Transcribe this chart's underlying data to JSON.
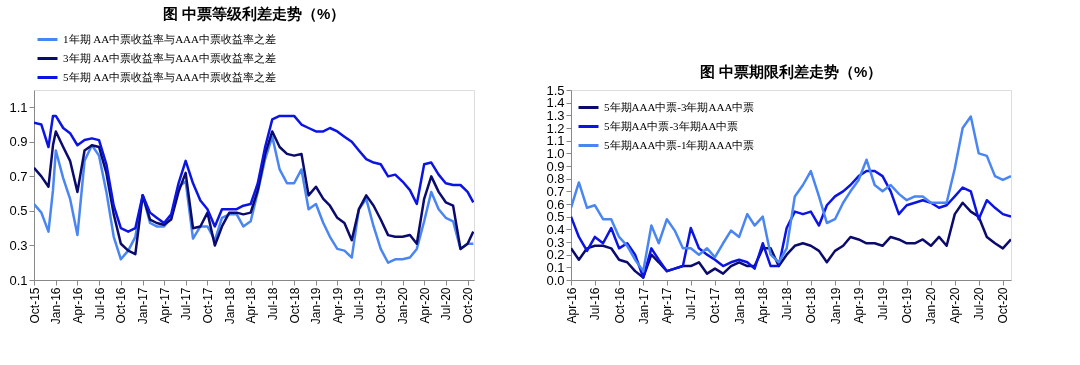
{
  "chart_data": [
    {
      "type": "line",
      "title": "图 中票等级利差走势（%）",
      "legend": "top",
      "line_style": "solid",
      "marker": "none",
      "grid": false,
      "xlim": [
        "2015-10-01",
        "2020-10-28"
      ],
      "ylim": [
        0.1,
        1.2
      ],
      "yticks": [
        0.1,
        0.3,
        0.5,
        0.7,
        0.9,
        1.1
      ],
      "xticks": [
        {
          "value": "2015-10-01",
          "label": "Oct-15"
        },
        {
          "value": "2016-01-01",
          "label": "Jan-16"
        },
        {
          "value": "2016-04-01",
          "label": "Apr-16"
        },
        {
          "value": "2016-07-01",
          "label": "Jul-16"
        },
        {
          "value": "2016-10-01",
          "label": "Oct-16"
        },
        {
          "value": "2017-01-01",
          "label": "Jan-17"
        },
        {
          "value": "2017-04-01",
          "label": "Apr-17"
        },
        {
          "value": "2017-07-01",
          "label": "Jul-17"
        },
        {
          "value": "2017-10-01",
          "label": "Oct-17"
        },
        {
          "value": "2018-01-01",
          "label": "Jan-18"
        },
        {
          "value": "2018-04-01",
          "label": "Apr-18"
        },
        {
          "value": "2018-07-01",
          "label": "Jul-18"
        },
        {
          "value": "2018-10-01",
          "label": "Oct-18"
        },
        {
          "value": "2019-01-01",
          "label": "Jan-19"
        },
        {
          "value": "2019-04-01",
          "label": "Apr-19"
        },
        {
          "value": "2019-07-01",
          "label": "Jul-19"
        },
        {
          "value": "2019-10-01",
          "label": "Oct-19"
        },
        {
          "value": "2020-01-01",
          "label": "Jan-20"
        },
        {
          "value": "2020-04-01",
          "label": "Apr-20"
        },
        {
          "value": "2020-07-01",
          "label": "Jul-20"
        },
        {
          "value": "2020-10-01",
          "label": "Oct-20"
        }
      ],
      "x": [
        "2015-10-01",
        "2015-11-01",
        "2015-12-01",
        "2015-12-20",
        "2016-01-01",
        "2016-02-01",
        "2016-03-01",
        "2016-04-01",
        "2016-05-01",
        "2016-06-01",
        "2016-07-01",
        "2016-08-01",
        "2016-09-01",
        "2016-10-01",
        "2016-11-01",
        "2016-12-01",
        "2017-01-01",
        "2017-02-01",
        "2017-03-01",
        "2017-04-01",
        "2017-05-01",
        "2017-06-01",
        "2017-07-01",
        "2017-08-01",
        "2017-09-01",
        "2017-10-01",
        "2017-11-01",
        "2017-12-01",
        "2018-01-01",
        "2018-02-01",
        "2018-03-01",
        "2018-04-01",
        "2018-05-01",
        "2018-06-01",
        "2018-07-01",
        "2018-08-01",
        "2018-09-01",
        "2018-10-01",
        "2018-11-01",
        "2018-12-01",
        "2019-01-01",
        "2019-02-01",
        "2019-03-01",
        "2019-04-01",
        "2019-05-01",
        "2019-06-01",
        "2019-07-01",
        "2019-08-01",
        "2019-09-01",
        "2019-10-01",
        "2019-11-01",
        "2019-12-01",
        "2020-01-01",
        "2020-02-01",
        "2020-03-01",
        "2020-04-01",
        "2020-05-01",
        "2020-06-01",
        "2020-07-01",
        "2020-08-01",
        "2020-09-01",
        "2020-10-01",
        "2020-10-25"
      ],
      "series": [
        {
          "name": "1年期 AA中票收益率与AAA中票收益率之差",
          "color": "#4a86f2",
          "values": [
            0.54,
            0.49,
            0.38,
            0.62,
            0.85,
            0.69,
            0.57,
            0.36,
            0.79,
            0.88,
            0.82,
            0.61,
            0.35,
            0.22,
            0.27,
            0.35,
            0.59,
            0.43,
            0.41,
            0.41,
            0.46,
            0.64,
            0.67,
            0.34,
            0.41,
            0.41,
            0.33,
            0.46,
            0.48,
            0.48,
            0.41,
            0.44,
            0.61,
            0.8,
            0.93,
            0.74,
            0.66,
            0.66,
            0.74,
            0.51,
            0.54,
            0.43,
            0.35,
            0.28,
            0.27,
            0.23,
            0.51,
            0.57,
            0.41,
            0.28,
            0.2,
            0.22,
            0.22,
            0.23,
            0.28,
            0.44,
            0.61,
            0.51,
            0.46,
            0.44,
            0.28,
            0.31,
            0.31
          ]
        },
        {
          "name": "3年期 AA中票收益率与AAA中票收益率之差",
          "color": "#0b0b6e",
          "values": [
            0.75,
            0.7,
            0.64,
            0.88,
            0.96,
            0.87,
            0.79,
            0.61,
            0.85,
            0.88,
            0.87,
            0.72,
            0.48,
            0.31,
            0.27,
            0.25,
            0.59,
            0.45,
            0.43,
            0.42,
            0.45,
            0.61,
            0.72,
            0.4,
            0.41,
            0.49,
            0.3,
            0.41,
            0.49,
            0.49,
            0.48,
            0.49,
            0.62,
            0.83,
            0.96,
            0.87,
            0.83,
            0.82,
            0.83,
            0.59,
            0.64,
            0.57,
            0.53,
            0.46,
            0.43,
            0.33,
            0.51,
            0.59,
            0.53,
            0.45,
            0.36,
            0.35,
            0.35,
            0.36,
            0.31,
            0.57,
            0.7,
            0.61,
            0.55,
            0.53,
            0.28,
            0.31,
            0.38
          ]
        },
        {
          "name": "5年期 AA中票收益率与AAA中票收益率之差",
          "color": "#0c14e4",
          "values": [
            1.01,
            1.0,
            0.87,
            1.05,
            1.05,
            0.98,
            0.95,
            0.88,
            0.91,
            0.92,
            0.91,
            0.77,
            0.53,
            0.4,
            0.38,
            0.4,
            0.59,
            0.49,
            0.46,
            0.43,
            0.48,
            0.66,
            0.79,
            0.66,
            0.56,
            0.51,
            0.41,
            0.51,
            0.51,
            0.51,
            0.53,
            0.54,
            0.66,
            0.87,
            1.03,
            1.05,
            1.05,
            1.05,
            1.0,
            0.98,
            0.96,
            0.96,
            0.98,
            0.96,
            0.93,
            0.9,
            0.85,
            0.8,
            0.78,
            0.77,
            0.7,
            0.71,
            0.67,
            0.62,
            0.54,
            0.77,
            0.78,
            0.71,
            0.66,
            0.65,
            0.65,
            0.61,
            0.55
          ]
        }
      ]
    },
    {
      "type": "line",
      "title": "图 中票期限利差走势（%）",
      "legend": "top left",
      "line_style": "solid",
      "marker": "none",
      "grid": false,
      "xlim": [
        "2016-04-01",
        "2020-11-01"
      ],
      "ylim": [
        0,
        1.5
      ],
      "yticks": [
        {
          "value": 0,
          "label": "0.0"
        },
        0.1,
        0.2,
        0.3,
        0.4,
        0.5,
        0.6,
        0.7,
        0.8,
        0.9,
        {
          "value": 1,
          "label": "1.0"
        },
        1.1,
        1.2,
        1.3,
        1.4,
        1.5
      ],
      "xticks": [
        {
          "value": "2016-04-01",
          "label": "Apr-16"
        },
        {
          "value": "2016-07-01",
          "label": "Jul-16"
        },
        {
          "value": "2016-10-01",
          "label": "Oct-16"
        },
        {
          "value": "2017-01-01",
          "label": "Jan-17"
        },
        {
          "value": "2017-04-01",
          "label": "Apr-17"
        },
        {
          "value": "2017-07-01",
          "label": "Jul-17"
        },
        {
          "value": "2017-10-01",
          "label": "Oct-17"
        },
        {
          "value": "2018-01-01",
          "label": "Jan-18"
        },
        {
          "value": "2018-04-01",
          "label": "Apr-18"
        },
        {
          "value": "2018-07-01",
          "label": "Jul-18"
        },
        {
          "value": "2018-10-01",
          "label": "Oct-18"
        },
        {
          "value": "2019-01-01",
          "label": "Jan-19"
        },
        {
          "value": "2019-04-01",
          "label": "Apr-19"
        },
        {
          "value": "2019-07-01",
          "label": "Jul-19"
        },
        {
          "value": "2019-10-01",
          "label": "Oct-19"
        },
        {
          "value": "2020-01-01",
          "label": "Jan-20"
        },
        {
          "value": "2020-04-01",
          "label": "Apr-20"
        },
        {
          "value": "2020-07-01",
          "label": "Jul-20"
        },
        {
          "value": "2020-10-01",
          "label": "Oct-20"
        }
      ],
      "x": [
        "2016-04-01",
        "2016-05-01",
        "2016-06-01",
        "2016-07-01",
        "2016-08-01",
        "2016-09-01",
        "2016-10-01",
        "2016-11-01",
        "2016-12-01",
        "2017-01-01",
        "2017-02-01",
        "2017-03-01",
        "2017-04-01",
        "2017-05-01",
        "2017-06-01",
        "2017-07-01",
        "2017-08-01",
        "2017-09-01",
        "2017-10-01",
        "2017-11-01",
        "2017-12-01",
        "2018-01-01",
        "2018-02-01",
        "2018-03-01",
        "2018-04-01",
        "2018-05-01",
        "2018-06-01",
        "2018-07-01",
        "2018-08-01",
        "2018-09-01",
        "2018-10-01",
        "2018-11-01",
        "2018-12-01",
        "2019-01-01",
        "2019-02-01",
        "2019-03-01",
        "2019-04-01",
        "2019-05-01",
        "2019-06-01",
        "2019-07-01",
        "2019-08-01",
        "2019-09-01",
        "2019-10-01",
        "2019-11-01",
        "2019-12-01",
        "2020-01-01",
        "2020-02-01",
        "2020-03-01",
        "2020-04-01",
        "2020-05-01",
        "2020-06-01",
        "2020-07-01",
        "2020-08-01",
        "2020-09-01",
        "2020-10-01",
        "2020-11-01"
      ],
      "series": [
        {
          "name": "5年期AAA中票-3年期AAA中票",
          "color": "#0b0b6e",
          "values": [
            0.25,
            0.16,
            0.25,
            0.27,
            0.27,
            0.25,
            0.16,
            0.14,
            0.07,
            0.02,
            0.2,
            0.14,
            0.07,
            0.09,
            0.11,
            0.11,
            0.14,
            0.05,
            0.09,
            0.05,
            0.11,
            0.14,
            0.11,
            0.11,
            0.25,
            0.25,
            0.11,
            0.2,
            0.27,
            0.29,
            0.27,
            0.23,
            0.14,
            0.23,
            0.27,
            0.34,
            0.32,
            0.29,
            0.29,
            0.27,
            0.34,
            0.32,
            0.29,
            0.29,
            0.32,
            0.27,
            0.34,
            0.27,
            0.52,
            0.61,
            0.54,
            0.5,
            0.34,
            0.29,
            0.25,
            0.32
          ]
        },
        {
          "name": "5年期AA中票-3年期AA中票",
          "color": "#0c14e4",
          "values": [
            0.5,
            0.34,
            0.23,
            0.34,
            0.29,
            0.41,
            0.25,
            0.29,
            0.2,
            0.02,
            0.25,
            0.16,
            0.07,
            0.09,
            0.11,
            0.41,
            0.25,
            0.2,
            0.16,
            0.11,
            0.14,
            0.16,
            0.14,
            0.09,
            0.29,
            0.11,
            0.11,
            0.41,
            0.54,
            0.52,
            0.54,
            0.43,
            0.59,
            0.66,
            0.7,
            0.75,
            0.82,
            0.86,
            0.86,
            0.82,
            0.7,
            0.52,
            0.59,
            0.61,
            0.63,
            0.61,
            0.57,
            0.59,
            0.66,
            0.73,
            0.7,
            0.48,
            0.63,
            0.57,
            0.52,
            0.5
          ]
        },
        {
          "name": "5年期AAA中票-1年期AAA中票",
          "color": "#4a86f2",
          "values": [
            0.57,
            0.77,
            0.57,
            0.59,
            0.48,
            0.48,
            0.34,
            0.27,
            0.16,
            0.07,
            0.43,
            0.29,
            0.48,
            0.39,
            0.25,
            0.25,
            0.2,
            0.25,
            0.18,
            0.29,
            0.39,
            0.34,
            0.52,
            0.43,
            0.5,
            0.2,
            0.14,
            0.25,
            0.66,
            0.75,
            0.86,
            0.66,
            0.45,
            0.48,
            0.61,
            0.7,
            0.79,
            0.95,
            0.75,
            0.7,
            0.75,
            0.68,
            0.63,
            0.66,
            0.66,
            0.61,
            0.61,
            0.61,
            0.88,
            1.2,
            1.29,
            1.0,
            0.98,
            0.82,
            0.79,
            0.82
          ]
        }
      ]
    }
  ]
}
